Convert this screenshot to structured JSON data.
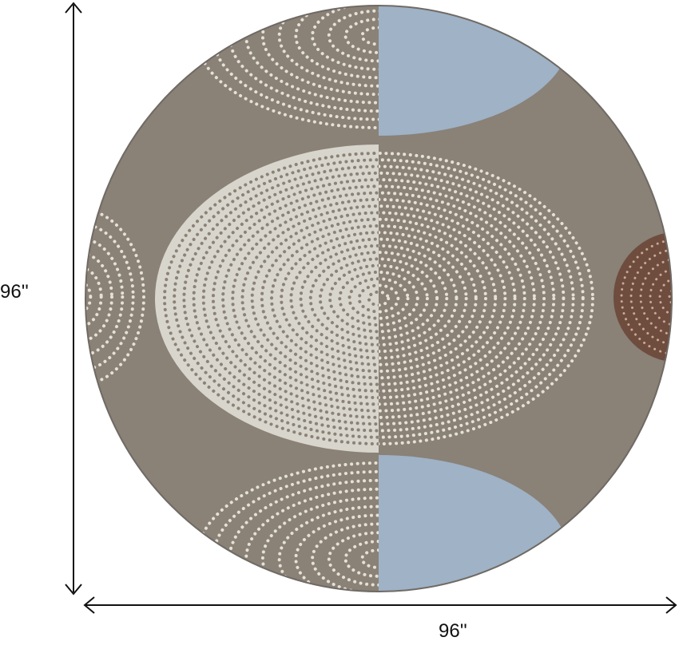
{
  "dimensions": {
    "height_label": "96''",
    "width_label": "96''"
  },
  "colors": {
    "background": "#8a8177",
    "light_panel": "#d8d5cc",
    "blue": "#9fb2c6",
    "rust": "#6e4c3e",
    "dot_light": "#e6e1d6",
    "dot_dark": "#8a8177"
  }
}
